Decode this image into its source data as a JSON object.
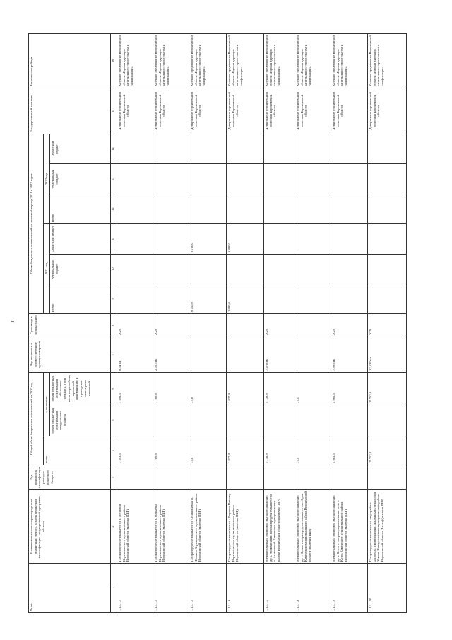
{
  "page_number": "2",
  "header": {
    "col1": "№ п/п",
    "col2": "Наименование главного распорядителя бюджетных средств, раздела бюджетной классификации, государственной программы, объекта",
    "col3": "Код подраздела классификации расходов областного бюджета",
    "group_2020": "Общий объем бюджетных ассигнований на 2020 год",
    "total": "всего",
    "including": "в том числе:",
    "fed_2020": "объем бюджетных ассигнований федерального бюджета",
    "obl_2020": "объем бюджетных ассигнований областного бюджета, в том числе на разработку проектной документации и проведение инженерных изысканий",
    "col7": "Вид мощности и соответствующие единицы измерения",
    "col8": "Срок ввода в эксплуатацию",
    "group_plan": "Объем бюджетных ассигнований на плановый период 2021 и 2022 годов",
    "year_2021": "2021 год",
    "year_2022": "2022 год",
    "sub_total": "Всего",
    "sub_fed": "Федеральный бюджет",
    "sub_obl": "Областной бюджет",
    "col15": "Государственный заказчик",
    "col16": "Заказчик-застройщик",
    "numbers": [
      "1",
      "2",
      "3",
      "4",
      "5",
      "6",
      "7",
      "8",
      "9",
      "10",
      "11",
      "12",
      "13",
      "14",
      "15",
      "16"
    ]
  },
  "rows": [
    {
      "num": "1.1.1.1.3",
      "name": "Газораспределительные сети п. Трудовой Верхнехавского муниципального района Воронежской области (включая ПИР)",
      "code": "",
      "total_2020": "7 593,3",
      "fed_2020": "",
      "obl_2020": "7 593,3",
      "capacity": "8,54 км",
      "year": "2020",
      "t21": "",
      "f21": "",
      "o21": "",
      "t22": "",
      "f22": "",
      "o22": "",
      "customer": "Департамент строительной политики Воронежской области",
      "developer": "Казенное предприятие Воронежской области «Единая дирекция капитального строительства и газификации»"
    },
    {
      "num": "1.1.1.1.4",
      "name": "Газораспределительные сети п. Марьевка Верхнехавского муниципального района Воронежской области (включая ПИР)",
      "code": "",
      "total_2020": "1 789,8",
      "fed_2020": "",
      "obl_2020": "1 789,8",
      "capacity": "2,067 км",
      "year": "2020",
      "t21": "",
      "f21": "",
      "o21": "",
      "t22": "",
      "f22": "",
      "o22": "",
      "customer": "Департамент строительной политики Воронежской области",
      "developer": "Казенное предприятие Воронежской области «Единая дирекция капитального строительства и газификации»"
    },
    {
      "num": "1.1.1.1.5",
      "name": "Газораспределительные сети с. Николаевка, п. Фомина Верхнехавского муниципального района Воронежской области (включая ПИР)",
      "code": "",
      "total_2020": "37,0",
      "fed_2020": "",
      "obl_2020": "37,0",
      "capacity": "",
      "year": "",
      "t21": "6 750,0",
      "f21": "",
      "o21": "6 750,0",
      "t22": "",
      "f22": "",
      "o22": "",
      "customer": "Департамент строительной политики Воронежской области",
      "developer": "Казенное предприятие Воронежской области «Единая дирекция капитального строительства и газификации»"
    },
    {
      "num": "1.1.1.1.6",
      "name": "Газораспределительные сети с. Верхняя Плавица Верхнехавского муниципального района Воронежской области (включая ПИР)",
      "code": "",
      "total_2020": "1 837,4",
      "fed_2020": "",
      "obl_2020": "1 837,4",
      "capacity": "",
      "year": "",
      "t21": "1 890,0",
      "f21": "",
      "o21": "1 890,0",
      "t22": "",
      "f22": "",
      "o22": "",
      "customer": "Департамент строительной политики Воронежской области",
      "developer": "Казенное предприятие Воронежской области «Единая дирекция капитального строительства и газификации»"
    },
    {
      "num": "1.1.1.1.7",
      "name": "Межпоселковый газопровод высокого давления до х. Атаманский и газораспределительные сети х. Атаманский Каменского муниципального района Воронежской области (включая ПИР)",
      "code": "",
      "total_2020": "5 138,9",
      "fed_2020": "",
      "obl_2020": "5 138,9",
      "capacity": "7,678 км",
      "year": "2020",
      "t21": "",
      "f21": "",
      "o21": "",
      "t22": "",
      "f22": "",
      "o22": "",
      "customer": "Департамент строительной политики Воронежской области",
      "developer": "Казенное предприятие Воронежской области «Единая дирекция капитального строительства и газификации»"
    },
    {
      "num": "1.1.1.1.8",
      "name": "Межпоселковый газопровод высокого давления до с. Ярок и газораспределительные сети с. Ярок Каменского муниципального района Воронежской области (включая ПИР)",
      "code": "",
      "total_2020": "77,1",
      "fed_2020": "",
      "obl_2020": "77,1",
      "capacity": "",
      "year": "",
      "t21": "",
      "f21": "",
      "o21": "",
      "t22": "",
      "f22": "",
      "o22": "",
      "customer": "Департамент строительной политики Воронежской области",
      "developer": "Казенное предприятие Воронежской области «Единая дирекция капитального строительства и газификации»"
    },
    {
      "num": "1.1.1.1.9",
      "name": "Межпоселковый газопровод высокого давления до х. Котов и газораспределительные сети х. Котов Каменского муниципального района Воронежской области (включая ПИР)",
      "code": "",
      "total_2020": "4 965,5",
      "fed_2020": "",
      "obl_2020": "4 965,5",
      "capacity": "7,995 км",
      "year": "2020",
      "t21": "",
      "f21": "",
      "o21": "",
      "t22": "",
      "f22": "",
      "o22": "",
      "customer": "Департамент строительной политики Воронежской области",
      "developer": "Казенное предприятие Воронежской области «Единая дирекция капитального строительства и газификации»"
    },
    {
      "num": "1.1.1.1.10",
      "name": "Газораспределительные сети микрорайона «Победа» и микрорайона «Радужный» села Новая Усмань Новоусманского муниципального района Воронежской области (I этап) (включая ПИР)",
      "code": "",
      "total_2020": "19 753,8",
      "fed_2020": "",
      "obl_2020": "19 753,8",
      "capacity": "12,632 км",
      "year": "2020",
      "t21": "",
      "f21": "",
      "o21": "",
      "t22": "",
      "f22": "",
      "o22": "",
      "customer": "Департамент строительной политики Воронежской области",
      "developer": "Казенное предприятие Воронежской области «Единая дирекция капитального строительства и газификации»"
    }
  ]
}
